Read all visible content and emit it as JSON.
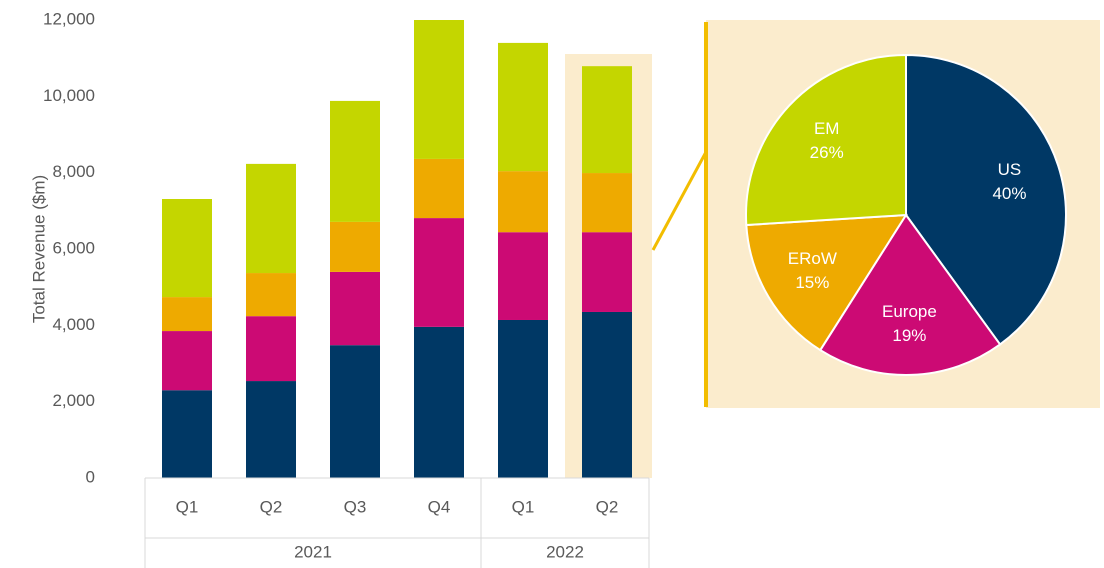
{
  "chart_data": [
    {
      "type": "stacked_bar",
      "y_label": "Total Revenue ($m)",
      "categories": [
        "Q1",
        "Q2",
        "Q3",
        "Q4",
        "Q1",
        "Q2"
      ],
      "x_groups": [
        {
          "label": "2021",
          "count": 4
        },
        {
          "label": "2022",
          "count": 2
        }
      ],
      "series": [
        {
          "name": "US",
          "color": "#003865",
          "values": [
            2300,
            2540,
            3480,
            3960,
            4140,
            4350
          ]
        },
        {
          "name": "Europe",
          "color": "#cc0a74",
          "values": [
            1550,
            1700,
            1920,
            2850,
            2300,
            2090
          ]
        },
        {
          "name": "ERoW",
          "color": "#eeaa00",
          "values": [
            890,
            1130,
            1310,
            1550,
            1600,
            1550
          ]
        },
        {
          "name": "EM",
          "color": "#c4d600",
          "values": [
            2570,
            2860,
            3170,
            3640,
            3360,
            2800
          ]
        }
      ],
      "ylim": [
        0,
        12000
      ],
      "yticks": [
        0,
        {
          "value": 2000,
          "label": "2,000"
        },
        {
          "value": 4000,
          "label": "4,000"
        },
        {
          "value": 6000,
          "label": "6,000"
        },
        {
          "value": 8000,
          "label": "8,000"
        },
        {
          "value": 10000,
          "label": "10,000"
        },
        {
          "value": 12000,
          "label": "12,000"
        }
      ],
      "grid": false
    },
    {
      "type": "pie",
      "categories": [
        "US",
        "Europe",
        "ERoW",
        "EM"
      ],
      "values": [
        40,
        19,
        15,
        26
      ],
      "value_labels": [
        "40%",
        "19%",
        "15%",
        "26%"
      ],
      "colors": [
        "#003865",
        "#cc0a74",
        "#eeaa00",
        "#c4d600"
      ]
    }
  ]
}
